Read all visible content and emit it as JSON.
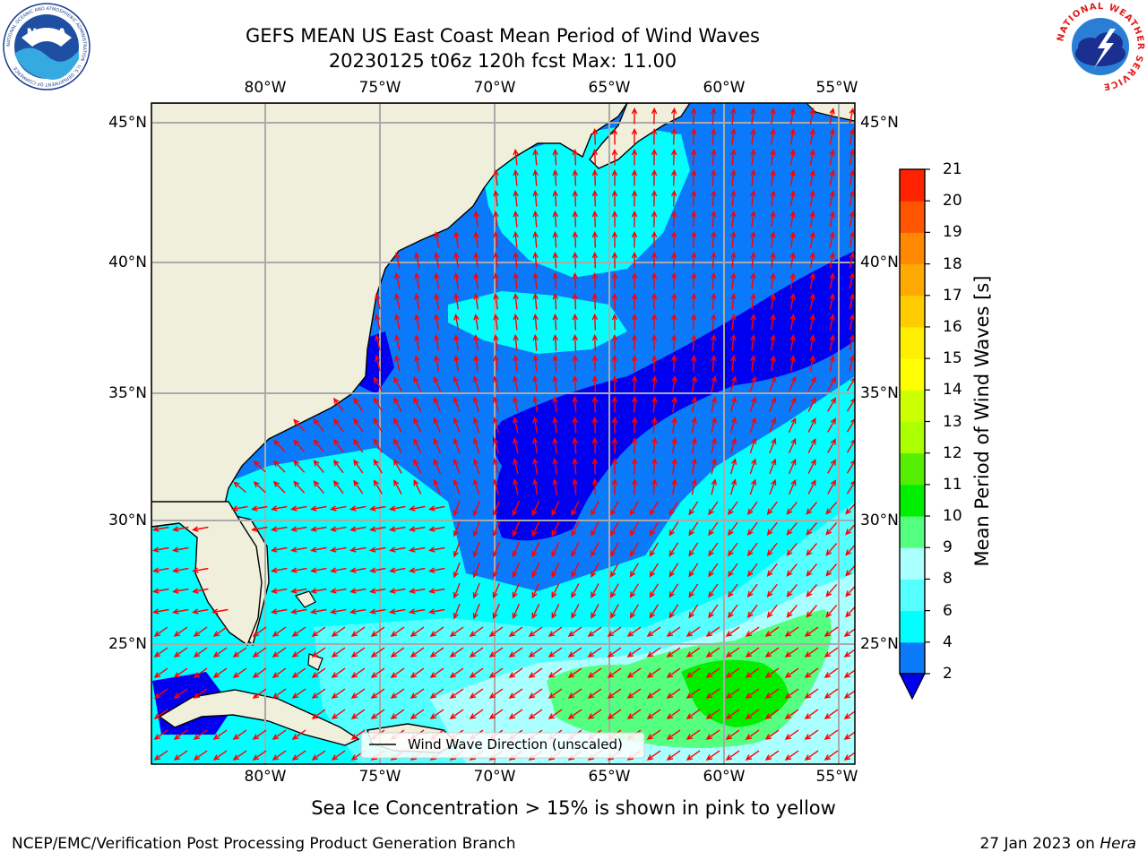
{
  "header": {
    "title_line1": "GEFS MEAN US East Coast Mean Period of Wind Waves",
    "title_line2": "20230125 t06z 120h fcst   Max: 11.00"
  },
  "logos": {
    "left_logo": "NOAA",
    "left_logo_ring": "NATIONAL OCEANIC AND ATMOSPHERIC ADMINISTRATION · U.S. DEPARTMENT OF COMMERCE",
    "right_logo_ring": "NATIONAL WEATHER SERVICE"
  },
  "map": {
    "lon_ticks": [
      "80°W",
      "75°W",
      "70°W",
      "65°W",
      "60°W",
      "55°W"
    ],
    "lat_ticks": [
      "45°N",
      "40°N",
      "35°N",
      "30°N",
      "25°N"
    ],
    "legend_label": "Wind Wave Direction (unscaled)",
    "colors": {
      "land": "#efefdc",
      "ocean_2_4": "#0a7afa",
      "ocean_below_2": "#0000f0",
      "ocean_4_6": "#00ffff",
      "ocean_6_8": "#55ffff",
      "ocean_8_9": "#aaffff",
      "ocean_9_10": "#55ff7f",
      "ocean_10_11": "#00ee00",
      "arrow": "#ff0000"
    }
  },
  "colorbar": {
    "label": "Mean Period of Wind Waves [s]",
    "ticks": [
      "2",
      "4",
      "6",
      "8",
      "9",
      "10",
      "11",
      "12",
      "13",
      "14",
      "15",
      "16",
      "17",
      "18",
      "19",
      "20",
      "21"
    ],
    "bin_colors": [
      "#0a7afa",
      "#00ffff",
      "#55ffff",
      "#aaffff",
      "#55ff7f",
      "#00ee00",
      "#55ee00",
      "#aaff00",
      "#ccff00",
      "#ffff00",
      "#ffee00",
      "#ffcc00",
      "#ffaa00",
      "#ff8800",
      "#ff5500",
      "#ff2200"
    ],
    "top_color": "#ff0000",
    "extend_color": "#0000f0"
  },
  "footer": {
    "subtitle": "Sea Ice Concentration > 15% is shown in pink to yellow",
    "left_text": "NCEP/EMC/Verification Post Processing Product Generation Branch",
    "right_text": "27 Jan 2023 on",
    "right_text_italic": "Hera"
  }
}
